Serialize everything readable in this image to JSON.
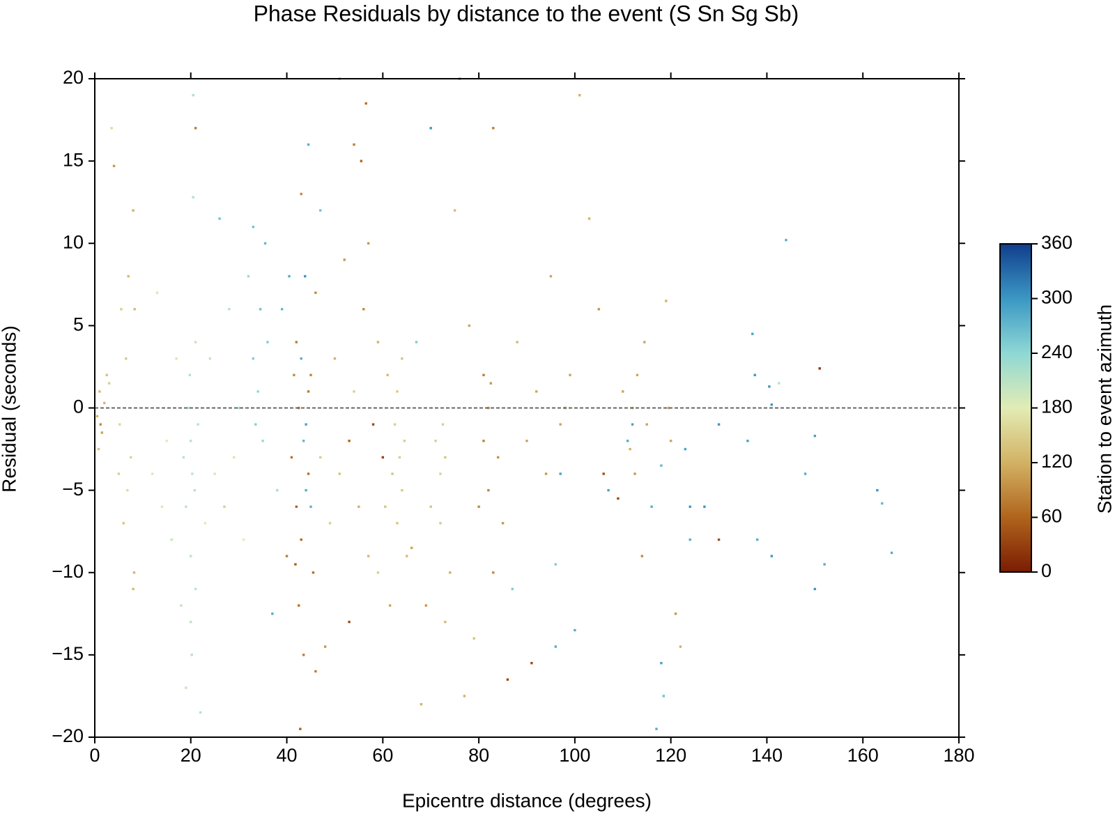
{
  "chart_data": {
    "type": "scatter",
    "title": "Phase Residuals by distance to the event (S Sn Sg Sb)",
    "x_label": "Epicentre distance (degrees)",
    "y_label": "Residual (seconds)",
    "colorbar_label": "Station to event azimuth",
    "xlim": [
      0,
      180
    ],
    "xticks": [
      0,
      20,
      40,
      60,
      80,
      100,
      120,
      140,
      160,
      180
    ],
    "ylim": [
      -20,
      20
    ],
    "yticks": [
      {
        "value": -20,
        "label": "−20"
      },
      {
        "value": -15,
        "label": "−15"
      },
      {
        "value": -10,
        "label": "−10"
      },
      {
        "value": -5,
        "label": "−5"
      },
      0,
      5,
      10,
      15,
      20
    ],
    "zlim": [
      0,
      360
    ],
    "zticks": [
      0,
      60,
      120,
      180,
      240,
      300,
      360
    ],
    "colormap": [
      "#7a1c03",
      "#b0641c",
      "#d2b264",
      "#e2ecb4",
      "#8ed8d4",
      "#3b97c4",
      "#103e8c"
    ],
    "reference_line": 0,
    "x": [
      0.5,
      1,
      1.5,
      2,
      2.5,
      0.8,
      3,
      1.2,
      5,
      5.5,
      6,
      6.5,
      7,
      7.5,
      8,
      8,
      8.2,
      8.3,
      5.2,
      6.8,
      3.5,
      4,
      12,
      13,
      14,
      15,
      16,
      17,
      18,
      18.5,
      19,
      19.5,
      20,
      20,
      20.2,
      20.5,
      20.5,
      20.8,
      21,
      21,
      21.5,
      19.8,
      20.3,
      22,
      21,
      20,
      19,
      23,
      24,
      25,
      26,
      27,
      28,
      29,
      30,
      31,
      32,
      33,
      33.5,
      34,
      34.5,
      35,
      33,
      35.5,
      37,
      36,
      38,
      39,
      40,
      40.5,
      41,
      41.5,
      42,
      42,
      42.5,
      42.5,
      43,
      43,
      43.5,
      43,
      43.5,
      42.8,
      44,
      44,
      44.5,
      44.5,
      44.5,
      45,
      45,
      45.5,
      46,
      46,
      47,
      47,
      43.8,
      41.8,
      48,
      49,
      50,
      51,
      51,
      52,
      53,
      53,
      54,
      54,
      55,
      55.5,
      56,
      56.5,
      57,
      57,
      58,
      59,
      59,
      60,
      60.5,
      61,
      61.5,
      62,
      62.5,
      63,
      63,
      63.5,
      64,
      64,
      64.5,
      65,
      66,
      67,
      68,
      69,
      70,
      70,
      71,
      72,
      72,
      72.5,
      73,
      73,
      74,
      75,
      76,
      77,
      78,
      79,
      80,
      81,
      81,
      82,
      82,
      82.5,
      83,
      83,
      84,
      85,
      86,
      87,
      88,
      90,
      91,
      92,
      94,
      95,
      96,
      96,
      97,
      98,
      99,
      100,
      101,
      103,
      105,
      106,
      107,
      109,
      110,
      111,
      111.5,
      112,
      112.5,
      113,
      114,
      114.5,
      115,
      116,
      117,
      118,
      118,
      118.5,
      119,
      119.5,
      120,
      121,
      122,
      123,
      124,
      124,
      127,
      130,
      130,
      136,
      137,
      138,
      137.5,
      140.5,
      141,
      141,
      142.5,
      144,
      148,
      150,
      150,
      151,
      152,
      163,
      164,
      166,
      97,
      112
    ],
    "values": [
      -0.5,
      1,
      -1.5,
      0.3,
      2,
      -2.5,
      1.5,
      -1,
      -4,
      6,
      -7,
      3,
      8,
      -3,
      -11,
      12,
      -10,
      6,
      -1,
      -5,
      17,
      14.7,
      -4,
      7,
      -6,
      -2,
      -8,
      3,
      -12,
      -3,
      -6,
      0,
      -2,
      -9,
      -15,
      19,
      12.8,
      -5,
      -11,
      4,
      -1,
      2,
      -4,
      -18.5,
      17,
      -13,
      -17,
      -7,
      3,
      -4,
      11.5,
      -6,
      6,
      -3,
      0,
      -8,
      8,
      3,
      -1,
      1,
      6,
      -2,
      11,
      10,
      -12.5,
      4,
      -5,
      6,
      -9,
      8,
      -3,
      2,
      -6,
      4,
      -12,
      0,
      -8,
      3,
      -2,
      13,
      -15,
      -19.5,
      -5,
      -1,
      1,
      -4,
      16,
      -6,
      2,
      -10,
      7,
      -16,
      12,
      -3,
      8,
      -9.5,
      -14.5,
      -7,
      3,
      -4,
      20,
      9,
      -2,
      -13,
      1,
      16,
      -6,
      15,
      6,
      18.5,
      -9,
      10,
      -1,
      -10,
      4,
      -3,
      -6,
      2,
      -12,
      -4,
      -1,
      1,
      -7,
      -3,
      -5,
      3,
      -2,
      -9,
      -8.5,
      4,
      -18,
      -12,
      17,
      -6,
      -2,
      -4,
      -7,
      -1,
      -3,
      -13,
      -10,
      12,
      20,
      -17.5,
      5,
      -14,
      -6,
      -2,
      2,
      0,
      -5,
      1.5,
      -10,
      17,
      -3,
      -7,
      -16.5,
      -11,
      4,
      -2,
      -15.5,
      1,
      -4,
      8,
      -9.5,
      -14.5,
      -1,
      0,
      2,
      -13.5,
      19,
      11.5,
      6,
      -4,
      -5,
      -5.5,
      1,
      -2,
      -2.5,
      0,
      -4,
      2,
      -9,
      4,
      -1,
      -6,
      -19.5,
      -3.5,
      -15.5,
      -17.5,
      6.5,
      0,
      -2,
      -12.5,
      -14.5,
      -2.5,
      -6,
      -8,
      -6,
      -1,
      -8,
      -2,
      4.5,
      -8,
      2,
      1.3,
      -9,
      0.2,
      1.5,
      10.2,
      -4,
      -1.7,
      -11,
      2.4,
      -9.5,
      -5,
      -5.8,
      -8.8,
      -4,
      -1
    ],
    "azimuth": [
      120,
      130,
      110,
      125,
      135,
      140,
      150,
      90,
      150,
      150,
      140,
      145,
      130,
      155,
      130,
      120,
      125,
      130,
      160,
      165,
      160,
      100,
      185,
      190,
      175,
      180,
      200,
      190,
      205,
      210,
      205,
      210,
      208,
      205,
      210,
      215,
      215,
      210,
      205,
      200,
      210,
      215,
      208,
      210,
      80,
      205,
      200,
      180,
      200,
      190,
      260,
      150,
      210,
      170,
      220,
      180,
      230,
      250,
      245,
      240,
      260,
      235,
      260,
      270,
      280,
      250,
      220,
      270,
      80,
      280,
      70,
      90,
      60,
      80,
      70,
      75,
      65,
      280,
      270,
      90,
      80,
      60,
      280,
      290,
      75,
      70,
      280,
      275,
      85,
      70,
      90,
      80,
      260,
      150,
      300,
      55,
      100,
      150,
      120,
      140,
      120,
      100,
      60,
      40,
      150,
      80,
      120,
      60,
      90,
      70,
      130,
      100,
      40,
      150,
      120,
      30,
      140,
      130,
      110,
      140,
      150,
      145,
      140,
      150,
      145,
      140,
      150,
      130,
      110,
      250,
      120,
      100,
      300,
      140,
      150,
      155,
      145,
      150,
      140,
      130,
      120,
      130,
      100,
      120,
      110,
      140,
      90,
      85,
      80,
      90,
      85,
      100,
      90,
      80,
      95,
      100,
      40,
      250,
      130,
      110,
      40,
      110,
      100,
      110,
      250,
      280,
      110,
      105,
      110,
      280,
      120,
      120,
      100,
      40,
      290,
      40,
      110,
      280,
      120,
      110,
      100,
      110,
      90,
      110,
      110,
      280,
      280,
      270,
      290,
      260,
      120,
      110,
      110,
      100,
      120,
      290,
      300,
      280,
      300,
      300,
      40,
      290,
      290,
      280,
      300,
      300,
      300,
      300,
      210,
      280,
      280,
      290,
      300,
      20,
      280,
      300,
      270,
      280,
      290,
      290
    ]
  }
}
